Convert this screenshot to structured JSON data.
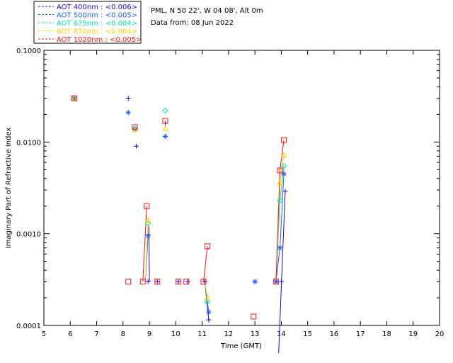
{
  "header": {
    "site_line": "PML, N 50 22', W 04 08', Alt 0m",
    "date_line": "Data from: 08 Jun 2022"
  },
  "chart_data": {
    "type": "scatter",
    "xlabel": "Time (GMT)",
    "ylabel": "Imaginary Part of Refractive Index",
    "xlim": [
      5,
      20
    ],
    "ylim": [
      0.0001,
      0.1
    ],
    "yscale": "log",
    "xticks": [
      "5",
      "6",
      "7",
      "8",
      "9",
      "10",
      "11",
      "12",
      "13",
      "14",
      "15",
      "16",
      "17",
      "18",
      "19",
      "20"
    ],
    "yticks": [
      "0.0001",
      "0.0010",
      "0.0100",
      "0.1000"
    ],
    "legend_placement": "top-left, outside plot",
    "series": [
      {
        "name": "AOT  400nm : <0.006>",
        "color": "#2a00d5",
        "marker": "plus",
        "points": [
          [
            6.15,
            0.03
          ],
          [
            8.2,
            0.03
          ],
          [
            8.5,
            0.009
          ],
          [
            8.95,
            0.0003
          ],
          [
            9.3,
            0.0003
          ],
          [
            9.6,
            0.016
          ],
          [
            10.1,
            0.0003
          ],
          [
            10.45,
            0.0003
          ],
          [
            11.1,
            0.0003
          ],
          [
            11.25,
            0.000115
          ],
          [
            13.0,
            0.0003
          ],
          [
            13.8,
            0.0003
          ],
          [
            14.0,
            0.0003
          ],
          [
            14.15,
            0.0029
          ]
        ],
        "lines": [
          [
            [
              9.0,
              0.0003
            ],
            [
              8.98,
              0.0012
            ]
          ],
          [
            [
              11.1,
              0.0003
            ],
            [
              11.25,
              0.000115
            ]
          ],
          [
            [
              13.9,
              5e-05
            ],
            [
              14.05,
              0.0006
            ],
            [
              14.15,
              0.0029
            ]
          ]
        ]
      },
      {
        "name": "AOT  500nm : <0.005>",
        "color": "#1f5fff",
        "marker": "asterisk",
        "points": [
          [
            6.15,
            0.03
          ],
          [
            8.2,
            0.021
          ],
          [
            8.45,
            0.014
          ],
          [
            8.95,
            0.00095
          ],
          [
            9.6,
            0.0115
          ],
          [
            11.25,
            0.00014
          ],
          [
            13.0,
            0.0003
          ],
          [
            13.8,
            0.0003
          ],
          [
            13.95,
            0.0007
          ],
          [
            14.1,
            0.0045
          ]
        ],
        "lines": [
          [
            [
              8.85,
              0.0003
            ],
            [
              8.95,
              0.00095
            ]
          ],
          [
            [
              11.1,
              0.0003
            ],
            [
              11.25,
              0.00014
            ]
          ],
          [
            [
              13.8,
              0.0003
            ],
            [
              13.95,
              0.0007
            ],
            [
              14.1,
              0.0045
            ]
          ]
        ]
      },
      {
        "name": "AOT  675nm : <0.004>",
        "color": "#00e6a8",
        "marker": "diamond",
        "points": [
          [
            6.15,
            0.03
          ],
          [
            8.45,
            0.014
          ],
          [
            8.95,
            0.0013
          ],
          [
            9.6,
            0.022
          ],
          [
            11.2,
            0.00018
          ],
          [
            13.95,
            0.0023
          ],
          [
            14.1,
            0.0055
          ]
        ],
        "lines": [
          [
            [
              8.85,
              0.0003
            ],
            [
              8.95,
              0.0013
            ]
          ],
          [
            [
              11.1,
              0.0003
            ],
            [
              11.2,
              0.00018
            ]
          ],
          [
            [
              13.8,
              0.0003
            ],
            [
              13.95,
              0.0023
            ],
            [
              14.1,
              0.0055
            ]
          ]
        ]
      },
      {
        "name": "AOT  870nm : <0.004>",
        "color": "#ffcc00",
        "marker": "triangle",
        "points": [
          [
            6.15,
            0.03
          ],
          [
            8.45,
            0.0135
          ],
          [
            8.95,
            0.0014
          ],
          [
            9.6,
            0.014
          ],
          [
            11.2,
            0.0002
          ],
          [
            13.95,
            0.0036
          ],
          [
            14.1,
            0.0072
          ]
        ],
        "lines": [
          [
            [
              8.85,
              0.0003
            ],
            [
              8.95,
              0.0014
            ]
          ],
          [
            [
              11.1,
              0.0003
            ],
            [
              11.2,
              0.0002
            ]
          ],
          [
            [
              13.8,
              0.0003
            ],
            [
              13.95,
              0.0036
            ],
            [
              14.1,
              0.0072
            ]
          ]
        ]
      },
      {
        "name": "AOT 1020nm : <0.005>",
        "color": "#ff1010",
        "marker": "square",
        "points": [
          [
            6.15,
            0.03
          ],
          [
            8.2,
            0.0003
          ],
          [
            8.45,
            0.0145
          ],
          [
            8.75,
            0.0003
          ],
          [
            8.9,
            0.002
          ],
          [
            9.3,
            0.0003
          ],
          [
            9.6,
            0.017
          ],
          [
            10.1,
            0.0003
          ],
          [
            10.4,
            0.0003
          ],
          [
            11.05,
            0.0003
          ],
          [
            11.2,
            0.00073
          ],
          [
            12.95,
            0.000125
          ],
          [
            13.8,
            0.0003
          ],
          [
            13.95,
            0.0049
          ],
          [
            14.1,
            0.0105
          ]
        ],
        "lines": [
          [
            [
              8.75,
              0.0003
            ],
            [
              8.9,
              0.002
            ]
          ],
          [
            [
              11.05,
              0.0003
            ],
            [
              11.2,
              0.00073
            ]
          ],
          [
            [
              13.8,
              0.0003
            ],
            [
              13.95,
              0.0049
            ],
            [
              14.1,
              0.0105
            ]
          ]
        ]
      }
    ]
  }
}
